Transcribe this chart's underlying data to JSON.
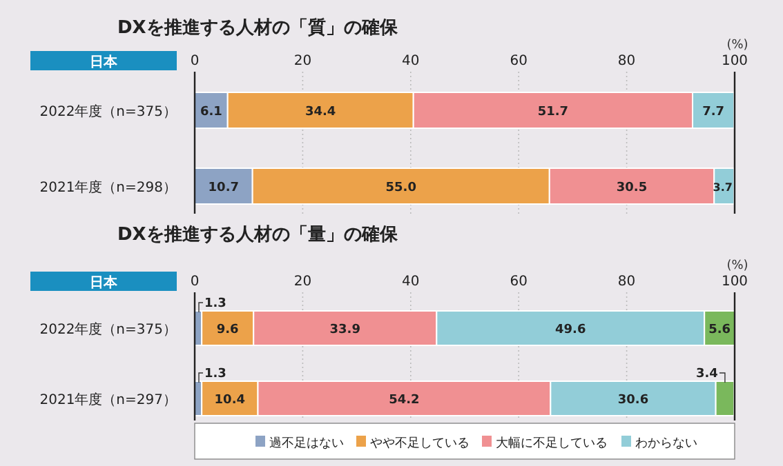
{
  "chart_data": [
    {
      "type": "bar",
      "orientation": "horizontal",
      "stacked": true,
      "title": "DXを推進する人材の「質」の確保",
      "xlabel": "(%)",
      "annotations": [
        "日本"
      ],
      "categories": [
        "2022年度（n=375）",
        "2021年度（n=298）"
      ],
      "xlim": [
        0,
        100
      ],
      "xticks": [
        0,
        20,
        40,
        60,
        80,
        100
      ],
      "grid": "x",
      "legend": false,
      "series": [
        {
          "color": "#8da3c4",
          "values": [
            6.1,
            10.7
          ],
          "value_labels": [
            "6.1",
            "10.7"
          ]
        },
        {
          "color": "#eca24a",
          "values": [
            34.4,
            55.0
          ],
          "value_labels": [
            "34.4",
            "55.0"
          ]
        },
        {
          "color": "#f09092",
          "values": [
            51.7,
            30.5
          ],
          "value_labels": [
            "51.7",
            "30.5"
          ]
        },
        {
          "color": "#92cdd8",
          "values": [
            7.7,
            3.7
          ],
          "value_labels": [
            "7.7",
            "3.7"
          ]
        }
      ]
    },
    {
      "type": "bar",
      "orientation": "horizontal",
      "stacked": true,
      "title": "DXを推進する人材の「量」の確保",
      "xlabel": "(%)",
      "annotations": [
        "日本"
      ],
      "categories": [
        "2022年度（n=375）",
        "2021年度（n=297）"
      ],
      "xlim": [
        0,
        100
      ],
      "xticks": [
        0,
        20,
        40,
        60,
        80,
        100
      ],
      "grid": "x",
      "legend": "bottom",
      "series": [
        {
          "name": "過不足はない",
          "color": "#8da3c4",
          "values": [
            1.3,
            1.3
          ],
          "value_labels": [
            "1.3",
            "1.3"
          ]
        },
        {
          "name": "やや不足している",
          "color": "#eca24a",
          "values": [
            9.6,
            10.4
          ],
          "value_labels": [
            "9.6",
            "10.4"
          ]
        },
        {
          "name": "大幅に不足している",
          "color": "#f09092",
          "values": [
            33.9,
            54.2
          ],
          "value_labels": [
            "33.9",
            "54.2"
          ]
        },
        {
          "name": "わからない",
          "color": "#92cdd8",
          "values": [
            49.6,
            30.6
          ],
          "value_labels": [
            "49.6",
            "30.6"
          ]
        },
        {
          "color": "#7ab85c",
          "values": [
            5.6,
            3.4
          ],
          "value_labels": [
            "5.6",
            "3.4"
          ]
        }
      ]
    }
  ]
}
